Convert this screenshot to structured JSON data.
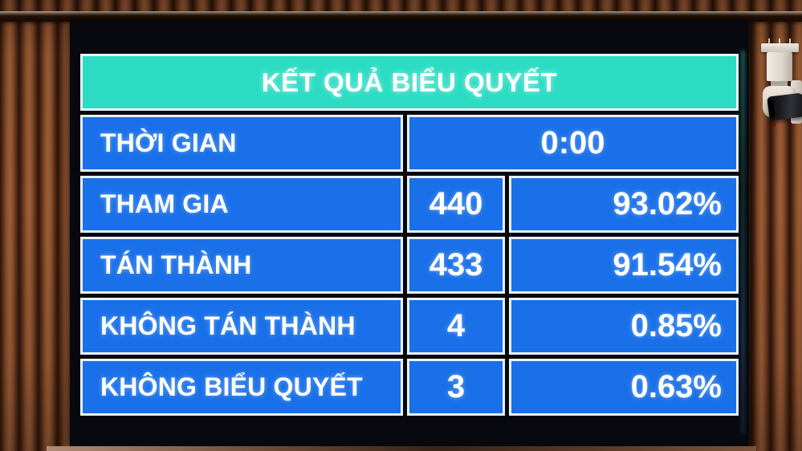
{
  "board": {
    "title": "KẾT QUẢ BIỂU QUYẾT",
    "rows": [
      {
        "label": "THỜI GIAN",
        "value": "0:00"
      },
      {
        "label": "THAM GIA",
        "value": "440",
        "percent": "93.02%"
      },
      {
        "label": "TÁN THÀNH",
        "value": "433",
        "percent": "91.54%"
      },
      {
        "label": "KHÔNG TÁN THÀNH",
        "value": "4",
        "percent": "0.85%"
      },
      {
        "label": "KHÔNG BIỂU QUYẾT",
        "value": "3",
        "percent": "0.63%"
      }
    ],
    "colors": {
      "header_bg": "#2bdcc3",
      "cell_bg": "#1a70e8",
      "cell_border": "#e9f1fb",
      "text": "#ffffff",
      "screen_bg": "#07090e"
    }
  },
  "scene": {
    "wall": "wooden-slat-wall",
    "camera": "ptz-security-camera",
    "wood_color": "#7b4426"
  }
}
